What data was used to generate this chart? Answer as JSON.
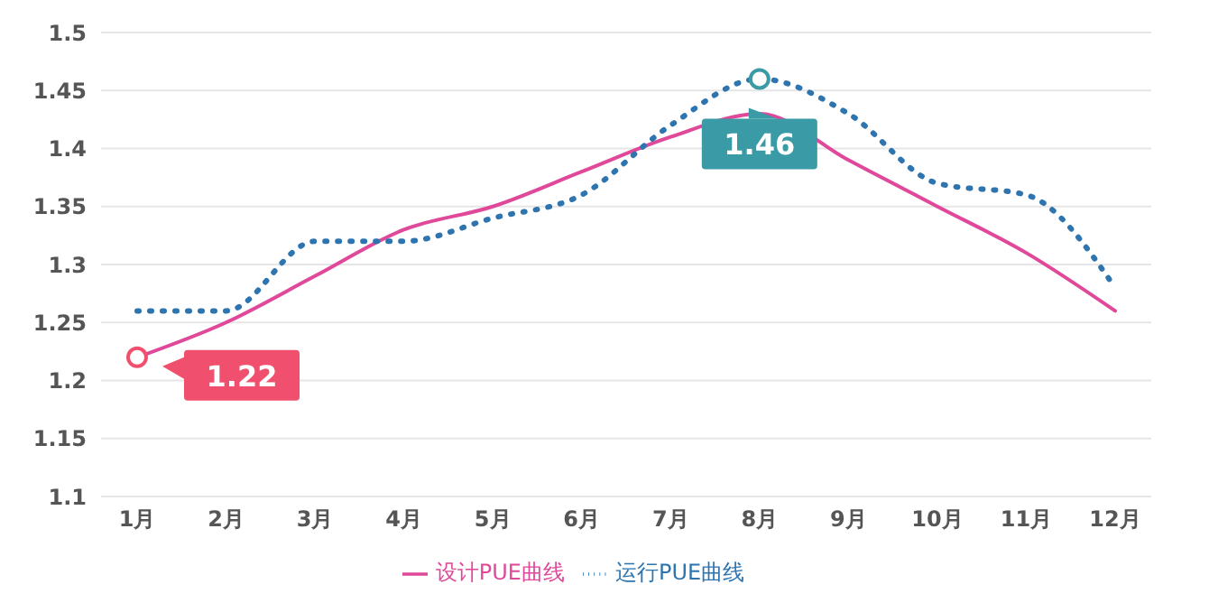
{
  "chart_data": {
    "type": "line",
    "categories": [
      "1月",
      "2月",
      "3月",
      "4月",
      "5月",
      "6月",
      "7月",
      "8月",
      "9月",
      "10月",
      "11月",
      "12月"
    ],
    "series": [
      {
        "name": "设计PUE曲线",
        "color": "#e0489a",
        "line_style": "solid",
        "values": [
          1.22,
          1.25,
          1.29,
          1.33,
          1.35,
          1.38,
          1.41,
          1.43,
          1.39,
          1.35,
          1.31,
          1.26
        ]
      },
      {
        "name": "运行PUE曲线",
        "color": "#2e75b0",
        "line_style": "dotted",
        "values": [
          1.26,
          1.26,
          1.32,
          1.32,
          1.34,
          1.36,
          1.42,
          1.46,
          1.43,
          1.37,
          1.36,
          1.28
        ]
      }
    ],
    "ylim": [
      1.1,
      1.5
    ],
    "yticks": [
      1.1,
      1.15,
      1.2,
      1.25,
      1.3,
      1.35,
      1.4,
      1.45,
      1.5
    ],
    "grid": "y",
    "legend": "bottom",
    "marker": "none",
    "annotations": [
      {
        "text": "1.22",
        "x": "1月",
        "y": 1.22
      },
      {
        "text": "1.46",
        "x": "8月",
        "y": 1.46
      }
    ]
  }
}
